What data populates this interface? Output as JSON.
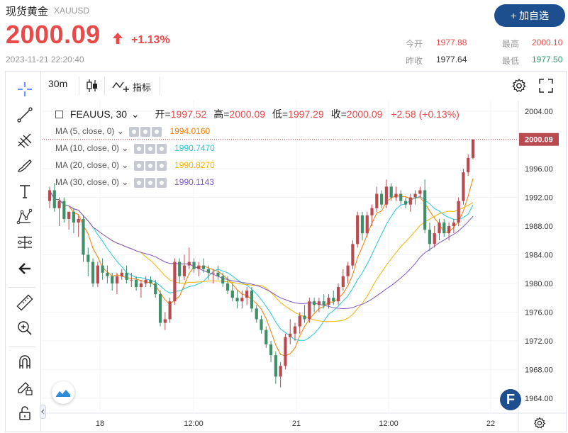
{
  "header": {
    "title": "现货黄金",
    "symbol": "XAUUSD",
    "price": "2000.09",
    "change_pct": "+1.13%",
    "timestamp": "2023-11-21 22:20:40",
    "add_button": "+ 加自选"
  },
  "quote": {
    "open_label": "今开",
    "open_value": "1977.88",
    "high_label": "最高",
    "high_value": "2000.10",
    "prev_label": "昨收",
    "prev_value": "1977.64",
    "low_label": "最低",
    "low_value": "1977.50"
  },
  "toolbar": {
    "timeframe": "30m",
    "indicators_label": "指标"
  },
  "legend": {
    "symbol_line": "FEAUUS, 30",
    "open_label": "开=",
    "open": "1997.52",
    "high_label": "高=",
    "high": "2000.09",
    "low_label": "低=",
    "low": "1997.29",
    "close_label": "收=",
    "close": "2000.09",
    "change": "+2.58 (+0.13%)",
    "ma": [
      {
        "label": "MA (5, close, 0)",
        "value": "1994.0160",
        "color": "#f57c00"
      },
      {
        "label": "MA (10, close, 0)",
        "value": "1990.7470",
        "color": "#26c6da"
      },
      {
        "label": "MA (20, close, 0)",
        "value": "1990.8270",
        "color": "#f4b400"
      },
      {
        "label": "MA (30, close, 0)",
        "value": "1990.1143",
        "color": "#7e57c2"
      }
    ]
  },
  "chart_data": {
    "type": "candlestick",
    "y_ticks": [
      "2004.00",
      "2000.00",
      "1996.00",
      "1992.00",
      "1988.00",
      "1984.00",
      "1980.00",
      "1976.00",
      "1972.00",
      "1968.00",
      "1964.00"
    ],
    "x_ticks": [
      "18",
      "12:00",
      "21",
      "12:00",
      "22"
    ],
    "last_price_label": "2000.09",
    "ylim": [
      1962,
      2005.5
    ],
    "up_color": "#b84a50",
    "down_color": "#3f8f6a",
    "candles": [
      [
        1991.5,
        1993.5,
        1990.5,
        1993
      ],
      [
        1993,
        1994,
        1990,
        1990.5
      ],
      [
        1990.5,
        1992,
        1988,
        1991.5
      ],
      [
        1991.5,
        1992,
        1988.5,
        1989
      ],
      [
        1989,
        1990,
        1987.5,
        1990
      ],
      [
        1990,
        1990.5,
        1987,
        1988.5
      ],
      [
        1988.5,
        1989.5,
        1986.5,
        1989
      ],
      [
        1989,
        1989.5,
        1983,
        1984
      ],
      [
        1984,
        1985,
        1981,
        1983
      ],
      [
        1983,
        1983.5,
        1979.5,
        1980
      ],
      [
        1980,
        1983,
        1979.5,
        1982.5
      ],
      [
        1982.5,
        1983.5,
        1980.5,
        1981.5
      ],
      [
        1981.5,
        1982.5,
        1980,
        1981
      ],
      [
        1981,
        1981.5,
        1979,
        1980
      ],
      [
        1980,
        1981.5,
        1978.5,
        1981
      ],
      [
        1981,
        1982,
        1980.5,
        1981.5
      ],
      [
        1981.5,
        1982.5,
        1980,
        1980.5
      ],
      [
        1980.5,
        1981.5,
        1979.5,
        1980.5
      ],
      [
        1980.5,
        1981,
        1979,
        1979.5
      ],
      [
        1979.5,
        1980.5,
        1978,
        1980
      ],
      [
        1980,
        1981,
        1979.5,
        1980.5
      ],
      [
        1980.5,
        1981,
        1979.5,
        1980
      ],
      [
        1980,
        1980.5,
        1978,
        1978.5
      ],
      [
        1978.5,
        1979,
        1974,
        1974.5
      ],
      [
        1974.5,
        1976,
        1973.5,
        1975
      ],
      [
        1975,
        1978,
        1974.5,
        1977.5
      ],
      [
        1977.5,
        1983.5,
        1977,
        1983
      ],
      [
        1983,
        1983.5,
        1980,
        1981
      ],
      [
        1981,
        1984,
        1980.5,
        1982.5
      ],
      [
        1982.5,
        1985,
        1982,
        1983
      ],
      [
        1983,
        1983.5,
        1981.5,
        1982
      ],
      [
        1982,
        1983,
        1981,
        1982.5
      ],
      [
        1982.5,
        1983.5,
        1981.5,
        1982
      ],
      [
        1982,
        1982.5,
        1980.5,
        1981.5
      ],
      [
        1981.5,
        1982,
        1980,
        1981.5
      ],
      [
        1981.5,
        1982.5,
        1980.5,
        1981
      ],
      [
        1981,
        1981.5,
        1979.5,
        1980
      ],
      [
        1980,
        1981,
        1978.5,
        1979
      ],
      [
        1979,
        1980,
        1977.5,
        1978
      ],
      [
        1978,
        1979,
        1976.5,
        1977.5
      ],
      [
        1977.5,
        1979,
        1976.5,
        1978
      ],
      [
        1978,
        1979.5,
        1977,
        1979
      ],
      [
        1979,
        1979.5,
        1976,
        1976.5
      ],
      [
        1976.5,
        1977,
        1974.5,
        1975
      ],
      [
        1975,
        1975.5,
        1973,
        1973.5
      ],
      [
        1973.5,
        1974,
        1971,
        1971.5
      ],
      [
        1971.5,
        1972,
        1969,
        1970
      ],
      [
        1970,
        1970.5,
        1966,
        1967
      ],
      [
        1967,
        1969,
        1965.5,
        1968.5
      ],
      [
        1968.5,
        1973,
        1968,
        1972.5
      ],
      [
        1972.5,
        1975,
        1971.5,
        1973
      ],
      [
        1973,
        1974.5,
        1972,
        1974
      ],
      [
        1974,
        1976,
        1973,
        1975.5
      ],
      [
        1975.5,
        1977,
        1974.5,
        1975
      ],
      [
        1975,
        1978,
        1974.5,
        1977.5
      ],
      [
        1977.5,
        1978,
        1976,
        1977
      ],
      [
        1977,
        1978,
        1976,
        1977.5
      ],
      [
        1977.5,
        1978.5,
        1976.5,
        1977
      ],
      [
        1977,
        1978.5,
        1976.5,
        1978
      ],
      [
        1978,
        1979,
        1977,
        1977.5
      ],
      [
        1977.5,
        1980,
        1977,
        1979.5
      ],
      [
        1979.5,
        1982,
        1979,
        1981
      ],
      [
        1981,
        1983,
        1980,
        1982.5
      ],
      [
        1982.5,
        1986,
        1982,
        1985.5
      ],
      [
        1985.5,
        1990,
        1985,
        1989.5
      ],
      [
        1989.5,
        1990,
        1986,
        1987
      ],
      [
        1987,
        1990,
        1986.5,
        1989.5
      ],
      [
        1989.5,
        1991,
        1988,
        1990.5
      ],
      [
        1990.5,
        1993.5,
        1990,
        1992.5
      ],
      [
        1992.5,
        1993,
        1990.5,
        1991
      ],
      [
        1991,
        1994.5,
        1990.5,
        1993.5
      ],
      [
        1993.5,
        1994,
        1991.5,
        1992
      ],
      [
        1992,
        1993.5,
        1991.5,
        1992.5
      ],
      [
        1992.5,
        1993,
        1991,
        1991.5
      ],
      [
        1991.5,
        1992,
        1990.5,
        1991
      ],
      [
        1991,
        1992.5,
        1990,
        1992
      ],
      [
        1992,
        1993,
        1991,
        1992.5
      ],
      [
        1992.5,
        1993.5,
        1992,
        1993
      ],
      [
        1993,
        1994.5,
        1987,
        1987.5
      ],
      [
        1987.5,
        1988.5,
        1984.5,
        1985.5
      ],
      [
        1985.5,
        1988,
        1985,
        1987
      ],
      [
        1987,
        1989,
        1986,
        1988.5
      ],
      [
        1988.5,
        1989,
        1986.5,
        1987
      ],
      [
        1987,
        1988.5,
        1986,
        1988
      ],
      [
        1988,
        1989,
        1987,
        1988.5
      ],
      [
        1988.5,
        1992,
        1988,
        1991.5
      ],
      [
        1991.5,
        1996,
        1991,
        1995.5
      ],
      [
        1995.5,
        1998,
        1995,
        1997.5
      ],
      [
        1997.5,
        2000.1,
        1997.3,
        2000.09
      ]
    ],
    "ma_series": [
      {
        "name": "MA (5, close, 0)",
        "color": "#f57c00",
        "period": 5
      },
      {
        "name": "MA (10, close, 0)",
        "color": "#26c6da",
        "period": 10
      },
      {
        "name": "MA (20, close, 0)",
        "color": "#f4b400",
        "period": 20
      },
      {
        "name": "MA (30, close, 0)",
        "color": "#7e57c2",
        "period": 30
      }
    ]
  }
}
